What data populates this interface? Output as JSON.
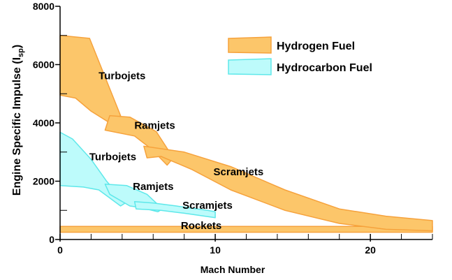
{
  "chart_data": {
    "type": "area",
    "title": "",
    "xlabel": "Mach Number",
    "ylabel_main": "Engine Specific Impulse (I",
    "ylabel_sub": "sp",
    "ylabel_end": ")",
    "xlim": [
      0,
      24
    ],
    "ylim": [
      0,
      8000
    ],
    "x_ticks": [
      0,
      10,
      20
    ],
    "x_tick_labels": [
      "0",
      "10",
      "20"
    ],
    "x_minor_ticks": [
      2,
      4,
      6,
      8,
      12,
      14,
      16,
      18,
      22,
      24
    ],
    "y_ticks": [
      0,
      2000,
      4000,
      6000,
      8000
    ],
    "y_tick_labels": [
      "0",
      "2000",
      "4000",
      "6000",
      "8000"
    ],
    "y_minor_ticks": [
      1000,
      3000,
      5000,
      7000
    ],
    "grid": false,
    "legend_position": "top-right",
    "legend": [
      {
        "label": "Hydrogen Fuel",
        "fill": "#fcc66a",
        "stroke": "#f6a23c"
      },
      {
        "label": "Hydrocarbon Fuel",
        "fill": "#bdfbfb",
        "stroke": "#5ee8ea"
      }
    ],
    "regions": [
      {
        "label": "Turbojets",
        "fuel": "Hydrogen Fuel",
        "polygon": [
          [
            0,
            7000
          ],
          [
            1.9,
            6900
          ],
          [
            3.9,
            4250
          ],
          [
            3.2,
            4000
          ],
          [
            2,
            4400
          ],
          [
            1,
            4850
          ],
          [
            0,
            4950
          ]
        ],
        "label_at": [
          4,
          5500
        ]
      },
      {
        "label": "Ramjets",
        "fuel": "Hydrogen Fuel",
        "polygon": [
          [
            3.2,
            4250
          ],
          [
            4.5,
            4200
          ],
          [
            6.2,
            3700
          ],
          [
            7.3,
            2800
          ],
          [
            6.9,
            2550
          ],
          [
            5.9,
            3100
          ],
          [
            4.8,
            3550
          ],
          [
            2.9,
            3750
          ]
        ],
        "label_at": [
          6.1,
          3800
        ]
      },
      {
        "label": "Scramjets",
        "fuel": "Hydrogen Fuel",
        "polygon": [
          [
            5.4,
            3200
          ],
          [
            8,
            3000
          ],
          [
            11,
            2500
          ],
          [
            14.5,
            1700
          ],
          [
            18,
            1050
          ],
          [
            21,
            800
          ],
          [
            24,
            650
          ],
          [
            24,
            300
          ],
          [
            21,
            350
          ],
          [
            18,
            550
          ],
          [
            14.5,
            1000
          ],
          [
            11,
            1700
          ],
          [
            8.5,
            2400
          ],
          [
            6.5,
            2850
          ],
          [
            5.6,
            2800
          ]
        ],
        "label_at": [
          11.5,
          2200
        ]
      },
      {
        "label": "Rockets",
        "fuel": "Hydrogen Fuel",
        "polygon": [
          [
            0,
            450
          ],
          [
            24,
            450
          ],
          [
            24,
            250
          ],
          [
            0,
            250
          ]
        ],
        "label_at": [
          9.1,
          360
        ]
      },
      {
        "label": "Turbojets",
        "fuel": "Hydrocarbon Fuel",
        "polygon": [
          [
            0,
            3680
          ],
          [
            0.8,
            3450
          ],
          [
            2,
            2750
          ],
          [
            3,
            2000
          ],
          [
            3.9,
            1450
          ],
          [
            4.2,
            1250
          ],
          [
            3.9,
            1150
          ],
          [
            2.5,
            1700
          ],
          [
            1.5,
            1800
          ],
          [
            0,
            1850
          ]
        ],
        "label_at": [
          3.4,
          2720
        ]
      },
      {
        "label": "Ramjets",
        "fuel": "Hydrocarbon Fuel",
        "polygon": [
          [
            2.9,
            1900
          ],
          [
            4.3,
            1850
          ],
          [
            5.6,
            1550
          ],
          [
            6.6,
            1050
          ],
          [
            6.3,
            950
          ],
          [
            5.2,
            1100
          ],
          [
            4.5,
            1150
          ],
          [
            3.2,
            1550
          ]
        ],
        "label_at": [
          6,
          1700
        ]
      },
      {
        "label": "Scramjets",
        "fuel": "Hydrocarbon Fuel",
        "polygon": [
          [
            4.8,
            1300
          ],
          [
            6,
            1250
          ],
          [
            7.5,
            1150
          ],
          [
            9.5,
            1000
          ],
          [
            10,
            950
          ],
          [
            10,
            750
          ],
          [
            8,
            900
          ],
          [
            6.5,
            1000
          ],
          [
            4.9,
            1050
          ]
        ],
        "label_at": [
          9.5,
          1050
        ]
      }
    ]
  }
}
